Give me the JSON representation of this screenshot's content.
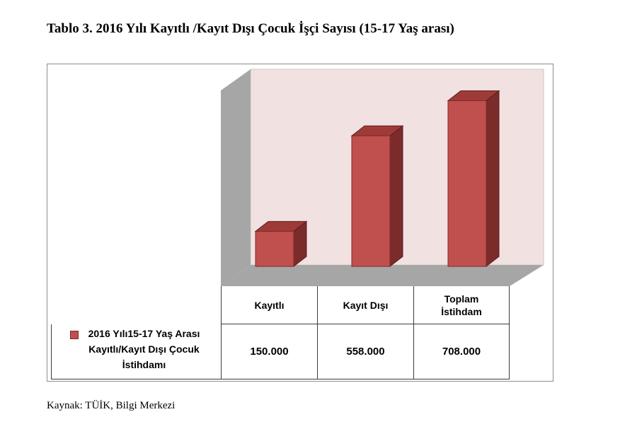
{
  "title": "Tablo 3. 2016 Yılı Kayıtlı /Kayıt Dışı Çocuk İşçi Sayısı (15-17 Yaş arası)",
  "source": "Kaynak: TÜİK, Bilgi Merkezi",
  "colors": {
    "bar_front": "#c0504d",
    "bar_side": "#7b2c2a",
    "bar_top": "#9e3b38",
    "back_wall": "#f2e1e1",
    "side_wall": "#a6a6a6",
    "floor": "#a6a6a6"
  },
  "chart_data": {
    "type": "bar",
    "title": "",
    "xlabel": "",
    "ylabel": "",
    "categories": [
      "Kayıtlı",
      "Kayıt Dışı",
      "Toplam\nİstihdam"
    ],
    "series": [
      {
        "name": "2016 Yılı15-17 Yaş Arası\nKayıtlı/Kayıt Dışı Çocuk\nİstihdamı",
        "values": [
          150000,
          558000,
          708000
        ]
      }
    ],
    "value_labels": [
      "150.000",
      "558.000",
      "708.000"
    ],
    "ylim": [
      0,
      800000
    ],
    "grid": false,
    "legend": "data table"
  }
}
